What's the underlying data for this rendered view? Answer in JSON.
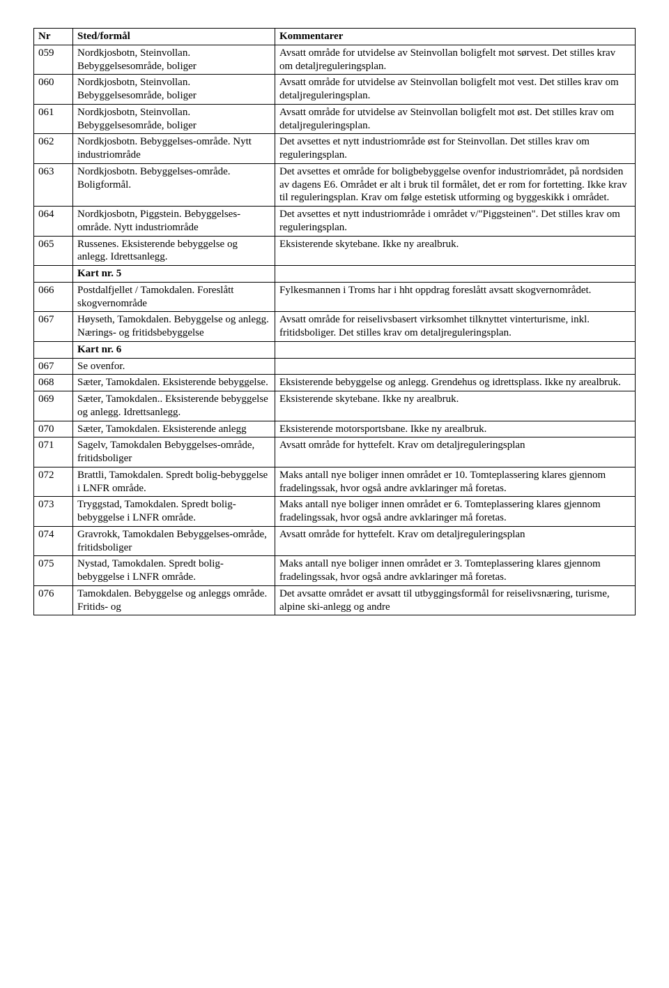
{
  "headers": {
    "nr": "Nr",
    "sted": "Sted/formål",
    "komm": "Kommentarer"
  },
  "rows": [
    {
      "nr": "059",
      "sted": "Nordkjosbotn, Steinvollan. Bebyggelsesområde, boliger",
      "komm": "Avsatt område for utvidelse av Steinvollan boligfelt mot sørvest. Det stilles krav om detaljreguleringsplan."
    },
    {
      "nr": "060",
      "sted": "Nordkjosbotn, Steinvollan. Bebyggelsesområde, boliger",
      "komm": "Avsatt område for utvidelse av Steinvollan boligfelt mot vest. Det stilles krav om detaljreguleringsplan."
    },
    {
      "nr": "061",
      "sted": "Nordkjosbotn, Steinvollan. Bebyggelsesområde, boliger",
      "komm": "Avsatt område for utvidelse av Steinvollan boligfelt mot øst. Det stilles krav om detaljreguleringsplan."
    },
    {
      "nr": "062",
      "sted": "Nordkjosbotn. Bebyggelses-område. Nytt industriområde",
      "komm": "Det avsettes et nytt industriområde øst for Steinvollan. Det stilles krav om reguleringsplan."
    },
    {
      "nr": "063",
      "sted": "Nordkjosbotn. Bebyggelses-område. Boligformål.",
      "komm": "Det avsettes et område for boligbebyggelse ovenfor industriområdet, på nordsiden av dagens E6. Området er alt i bruk til formålet, det er rom for fortetting. Ikke krav til reguleringsplan. Krav om følge estetisk utforming og byggeskikk i området."
    },
    {
      "nr": "064",
      "sted": "Nordkjosbotn, Piggstein. Bebyggelses-område. Nytt industriområde",
      "komm": "Det avsettes et nytt industriområde i området v/\"Piggsteinen\".\nDet stilles krav om reguleringsplan."
    },
    {
      "nr": "065",
      "sted": "Russenes. Eksisterende bebyggelse og anlegg. Idrettsanlegg.",
      "komm": "Eksisterende skytebane. Ikke ny arealbruk."
    },
    {
      "nr": "",
      "sted": "Kart nr. 5",
      "komm": "",
      "bold": true
    },
    {
      "nr": "066",
      "sted": "Postdalfjellet / Tamokdalen. Foreslått skogvernområde",
      "komm": "Fylkesmannen i Troms har i hht oppdrag foreslått avsatt skogvernområdet."
    },
    {
      "nr": "067",
      "sted": "Høyseth, Tamokdalen. Bebyggelse og anlegg. Nærings- og fritidsbebyggelse",
      "komm": "Avsatt område for reiselivsbasert virksomhet tilknyttet vinterturisme, inkl. fritidsboliger. Det stilles krav om detaljreguleringsplan."
    },
    {
      "nr": "",
      "sted": "Kart nr. 6",
      "komm": "",
      "bold": true
    },
    {
      "nr": "067",
      "sted": "Se ovenfor.",
      "komm": ""
    },
    {
      "nr": "068",
      "sted": "Sæter, Tamokdalen. Eksisterende bebyggelse.",
      "komm": "Eksisterende bebyggelse og anlegg. Grendehus og idrettsplass. Ikke ny arealbruk."
    },
    {
      "nr": "069",
      "sted": "Sæter, Tamokdalen.. Eksisterende bebyggelse og anlegg. Idrettsanlegg.",
      "komm": "Eksisterende skytebane. Ikke ny arealbruk."
    },
    {
      "nr": "070",
      "sted": "Sæter, Tamokdalen. Eksisterende anlegg",
      "komm": "Eksisterende motorsportsbane. Ikke ny arealbruk."
    },
    {
      "nr": "071",
      "sted": "Sagelv, Tamokdalen Bebyggelses-område, fritidsboliger",
      "komm": "Avsatt område for hyttefelt. Krav om detaljreguleringsplan"
    },
    {
      "nr": "072",
      "sted": "Brattli, Tamokdalen. Spredt bolig-bebyggelse i LNFR område.",
      "komm": "Maks antall nye boliger innen området er 10. Tomteplassering klares gjennom fradelingssak, hvor også andre avklaringer må foretas."
    },
    {
      "nr": "073",
      "sted": "Tryggstad, Tamokdalen. Spredt bolig-bebyggelse i LNFR område.",
      "komm": "Maks antall nye boliger innen området er 6. Tomteplassering klares gjennom fradelingssak, hvor også andre avklaringer må foretas."
    },
    {
      "nr": "074",
      "sted": "Gravrokk, Tamokdalen Bebyggelses-område, fritidsboliger",
      "komm": "Avsatt område for hyttefelt. Krav om detaljreguleringsplan"
    },
    {
      "nr": "075",
      "sted": "Nystad, Tamokdalen. Spredt bolig-bebyggelse i LNFR område.",
      "komm": "Maks antall nye boliger innen området er 3. Tomteplassering klares gjennom fradelingssak, hvor også andre avklaringer må foretas."
    },
    {
      "nr": "076",
      "sted": "Tamokdalen. Bebyggelse og anleggs område. Fritids- og",
      "komm": "Det avsatte området er avsatt til utbyggingsformål for reiselivsnæring, turisme, alpine ski-anlegg og andre"
    }
  ]
}
